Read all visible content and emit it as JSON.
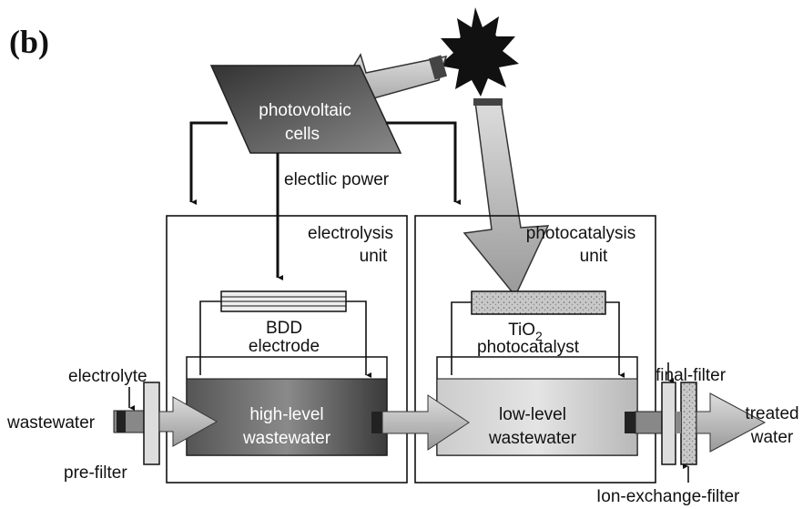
{
  "label": "(b)",
  "nodes": {
    "pv": {
      "line1": "photovoltaic",
      "line2": "cells"
    },
    "power": {
      "label": "electlic power"
    },
    "electrolysis": {
      "line1": "electrolysis",
      "line2": "unit"
    },
    "photocatalysis": {
      "line1": "photocatalysis",
      "line2": "unit"
    },
    "bdd": {
      "line1": "BDD",
      "line2": "electrode"
    },
    "tio2": {
      "formula": "TiO",
      "subscript": "2",
      "line2": "photocatalyst"
    },
    "electrolyte": {
      "label": "electrolyte"
    },
    "wastewater": {
      "label": "wastewater"
    },
    "prefilter": {
      "label": "pre-filter"
    },
    "high": {
      "line1": "high-level",
      "line2": "wastewater"
    },
    "low": {
      "line1": "low-level",
      "line2": "wastewater"
    },
    "finalfilter": {
      "label": "final-filter"
    },
    "treated": {
      "line1": "treated",
      "line2": "water"
    },
    "ionfilter": {
      "label": "Ion-exchange-filter"
    }
  }
}
